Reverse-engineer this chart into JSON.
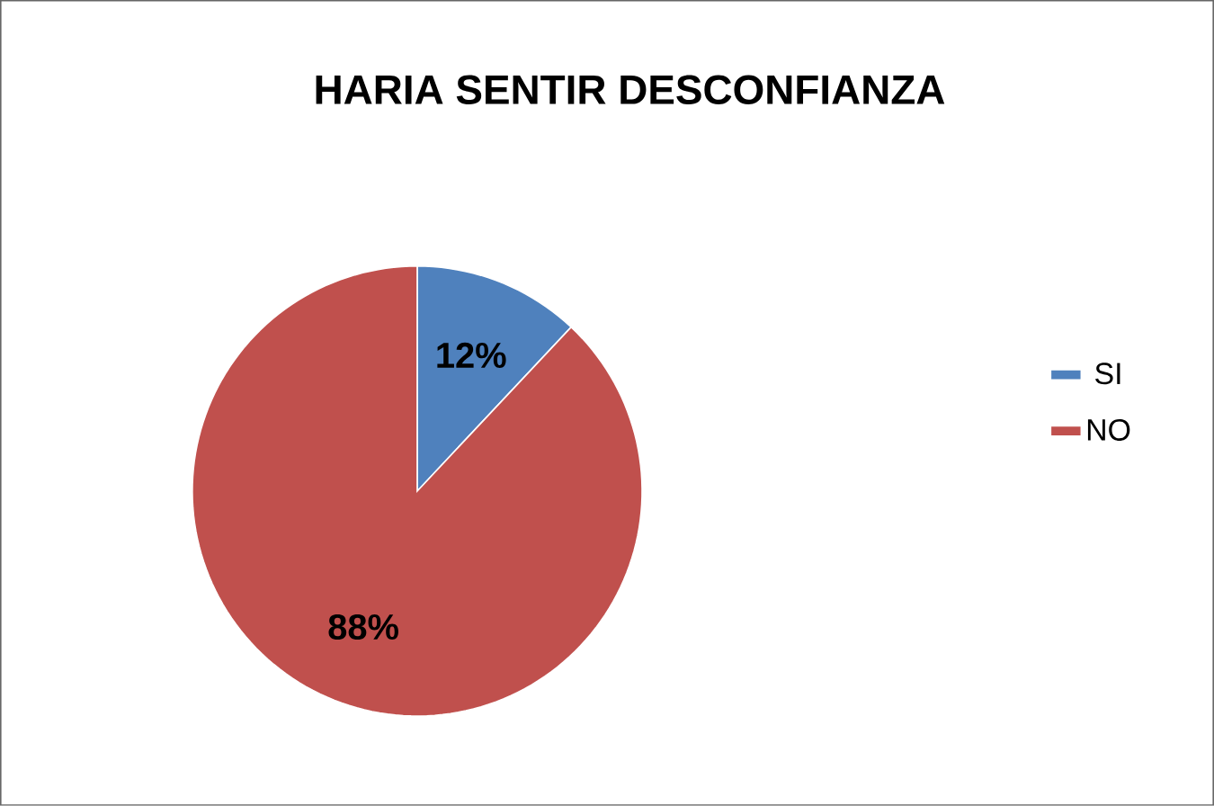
{
  "chart_data": {
    "type": "pie",
    "title": "HARIA SENTIR DESCONFIANZA",
    "categories": [
      "SI",
      "NO"
    ],
    "values": [
      12,
      88
    ],
    "colors": [
      "#4f81bd",
      "#c0504d"
    ],
    "value_labels": [
      "12%",
      "88%"
    ],
    "legend": "right"
  }
}
